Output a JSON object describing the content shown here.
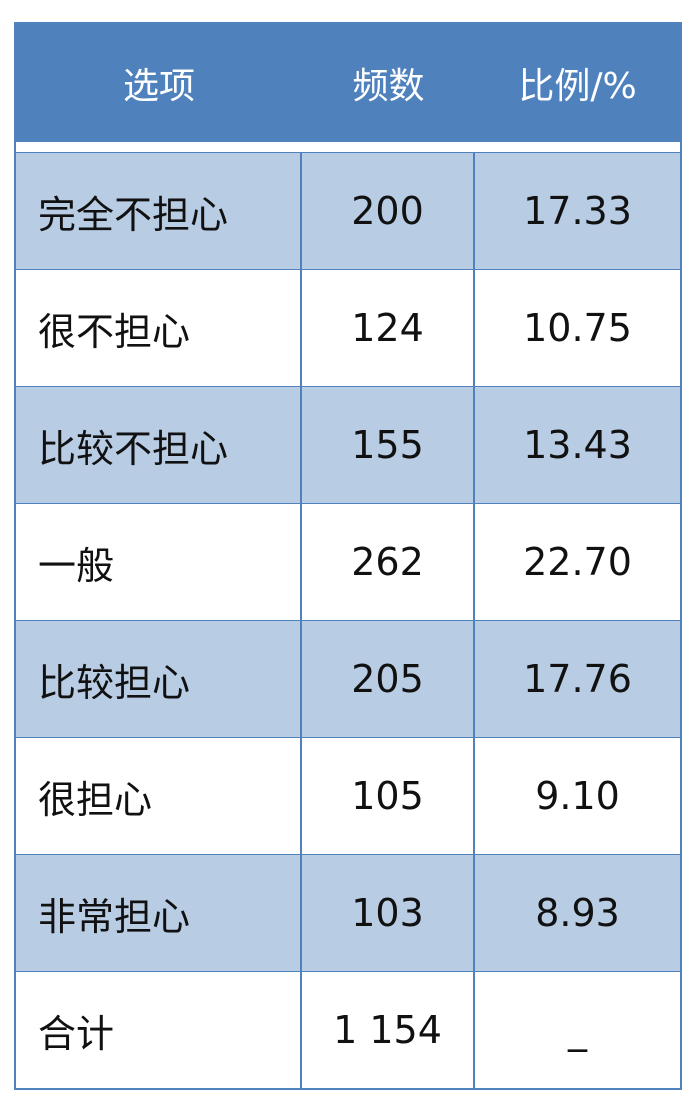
{
  "table": {
    "headers": [
      "选项",
      "频数",
      "比例/%"
    ],
    "rows": [
      [
        "完全不担心",
        "200",
        "17.33"
      ],
      [
        "很不担心",
        "124",
        "10.75"
      ],
      [
        "比较不担心",
        "155",
        "13.43"
      ],
      [
        "一般",
        "262",
        "22.70"
      ],
      [
        "比较担心",
        "205",
        "17.76"
      ],
      [
        "很担心",
        "105",
        "9.10"
      ],
      [
        "非常担心",
        "103",
        "8.93"
      ],
      [
        "合计",
        "1 154",
        "_"
      ]
    ]
  },
  "colors": {
    "header": "#4f81bd",
    "stripe": "#b8cce4"
  }
}
